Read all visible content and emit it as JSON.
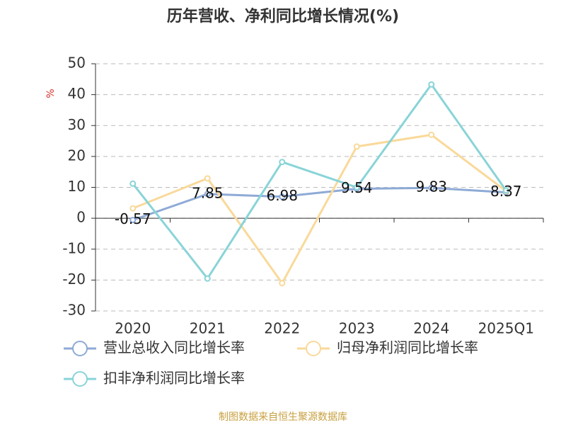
{
  "chart_data": {
    "type": "line",
    "title": "历年营收、净利同比增长情况(%)",
    "y_label": "%",
    "source": "制图数据来自恒生聚源数据库",
    "categories": [
      "2020",
      "2021",
      "2022",
      "2023",
      "2024",
      "2025Q1"
    ],
    "series": [
      {
        "name": "营业总收入同比增长率",
        "color": "#8eaad6",
        "labels": true,
        "values": [
          -0.57,
          7.85,
          6.98,
          9.54,
          9.83,
          8.37
        ]
      },
      {
        "name": "归母净利润同比增长率",
        "color": "#f9d99a",
        "values": [
          3.2,
          12.9,
          -21.0,
          23.2,
          27.0,
          8.8
        ]
      },
      {
        "name": "扣非净利润同比增长率",
        "color": "#89d4d8",
        "values": [
          11.2,
          -19.5,
          18.2,
          10.0,
          43.3,
          9.0
        ]
      }
    ],
    "ylim": [
      -30,
      50
    ],
    "yticks": [
      -30,
      -20,
      -10,
      0,
      10,
      20,
      30,
      40,
      50
    ],
    "grid": true
  }
}
